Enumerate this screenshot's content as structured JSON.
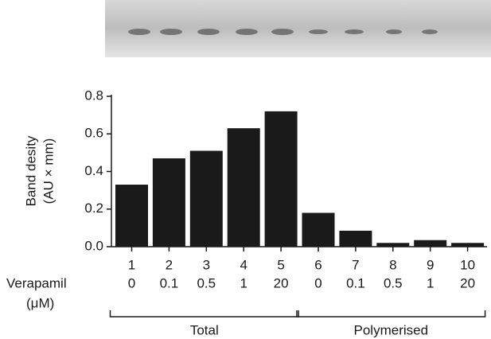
{
  "chart_data": {
    "type": "bar",
    "ylabel": [
      "Band desity",
      "(AU × mm)"
    ],
    "categories": [
      "1",
      "2",
      "3",
      "4",
      "5",
      "6",
      "7",
      "8",
      "9",
      "10"
    ],
    "row_label": [
      "Verapamil",
      "(μM)"
    ],
    "doses": [
      "0",
      "0.1",
      "0.5",
      "1",
      "20",
      "0",
      "0.1",
      "0.5",
      "1",
      "20"
    ],
    "groups": [
      {
        "label": "Total",
        "span": [
          0,
          4
        ]
      },
      {
        "label": "Polymerised",
        "span": [
          5,
          9
        ]
      }
    ],
    "values": [
      0.33,
      0.47,
      0.51,
      0.63,
      0.72,
      0.18,
      0.085,
      0.02,
      0.035,
      0.02
    ],
    "color": "#1a1a1a",
    "ylim": [
      0,
      0.8
    ],
    "yticks": [
      {
        "value": 0,
        "label": "0.0"
      },
      {
        "value": 0.2,
        "label": "0.2"
      },
      {
        "value": 0.4,
        "label": "0.4"
      },
      {
        "value": 0.6,
        "label": "0.6"
      },
      {
        "value": 0.8,
        "label": "0.8"
      }
    ]
  }
}
